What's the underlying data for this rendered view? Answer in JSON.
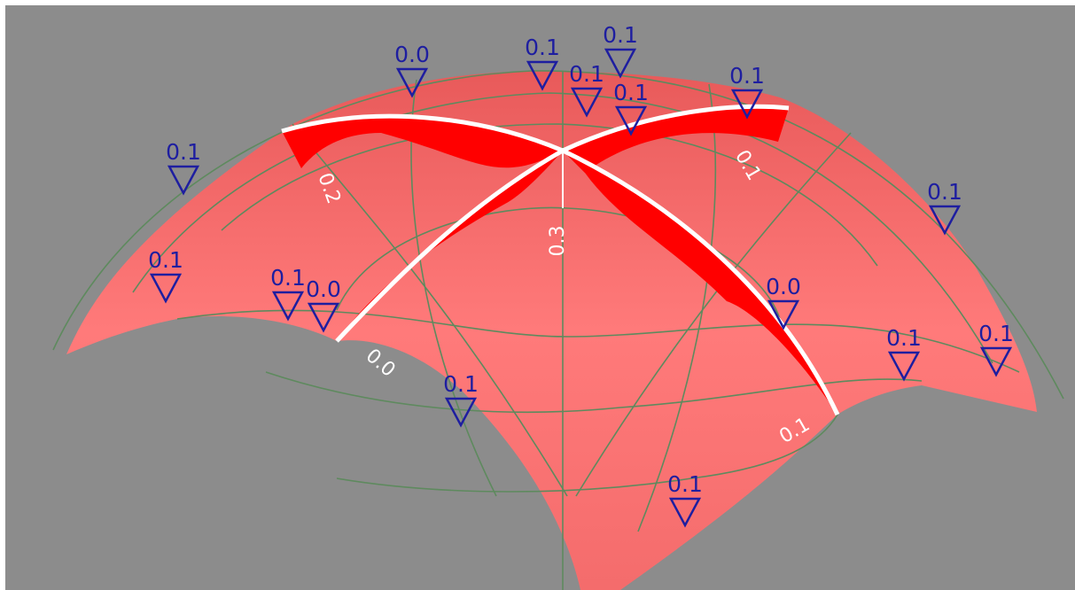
{
  "markers": [
    {
      "label": "0.0"
    },
    {
      "label": "0.1"
    },
    {
      "label": "0.1"
    },
    {
      "label": "0.1"
    },
    {
      "label": "0.1"
    },
    {
      "label": "0.1"
    },
    {
      "label": "0.1"
    },
    {
      "label": "0.1"
    },
    {
      "label": "0.1"
    },
    {
      "label": "0.1"
    },
    {
      "label": "0.0"
    },
    {
      "label": "0.0"
    },
    {
      "label": "0.1"
    },
    {
      "label": "0.1"
    },
    {
      "label": "0.1"
    },
    {
      "label": "0.1"
    }
  ],
  "surface_labels": [
    "0.2",
    "0.3",
    "0.1",
    "0.0",
    "0.1"
  ]
}
